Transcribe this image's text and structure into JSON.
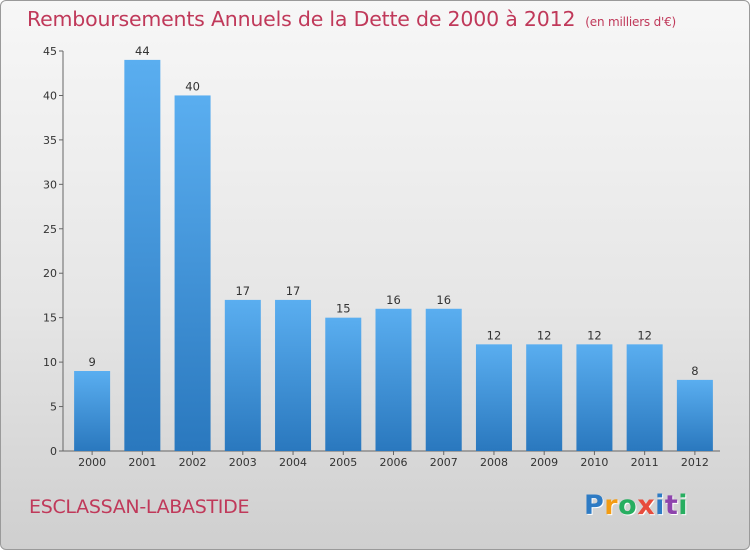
{
  "title": "Remboursements Annuels de la Dette de 2000 à 2012",
  "unit": "(en milliers d'€)",
  "place": "ESCLASSAN-LABASTIDE",
  "logo": {
    "letters": [
      "P",
      "r",
      "o",
      "x",
      "i",
      "t",
      "i"
    ],
    "colors": [
      "#2e7bc4",
      "#f39c12",
      "#27ae60",
      "#e74c3c",
      "#2e7bc4",
      "#8e44ad",
      "#27ae60"
    ]
  },
  "chart_data": {
    "type": "bar",
    "title": "Remboursements Annuels de la Dette de 2000 à 2012",
    "categories": [
      "2000",
      "2001",
      "2002",
      "2003",
      "2004",
      "2005",
      "2006",
      "2007",
      "2008",
      "2009",
      "2010",
      "2011",
      "2012"
    ],
    "values": [
      9,
      44,
      40,
      17,
      17,
      15,
      16,
      16,
      12,
      12,
      12,
      12,
      8
    ],
    "xlabel": "",
    "ylabel": "",
    "ylim": [
      0,
      45
    ],
    "yticks": [
      0,
      5,
      10,
      15,
      20,
      25,
      30,
      35,
      40,
      45
    ],
    "grid": false,
    "bar_color": "#4a9fe0"
  }
}
